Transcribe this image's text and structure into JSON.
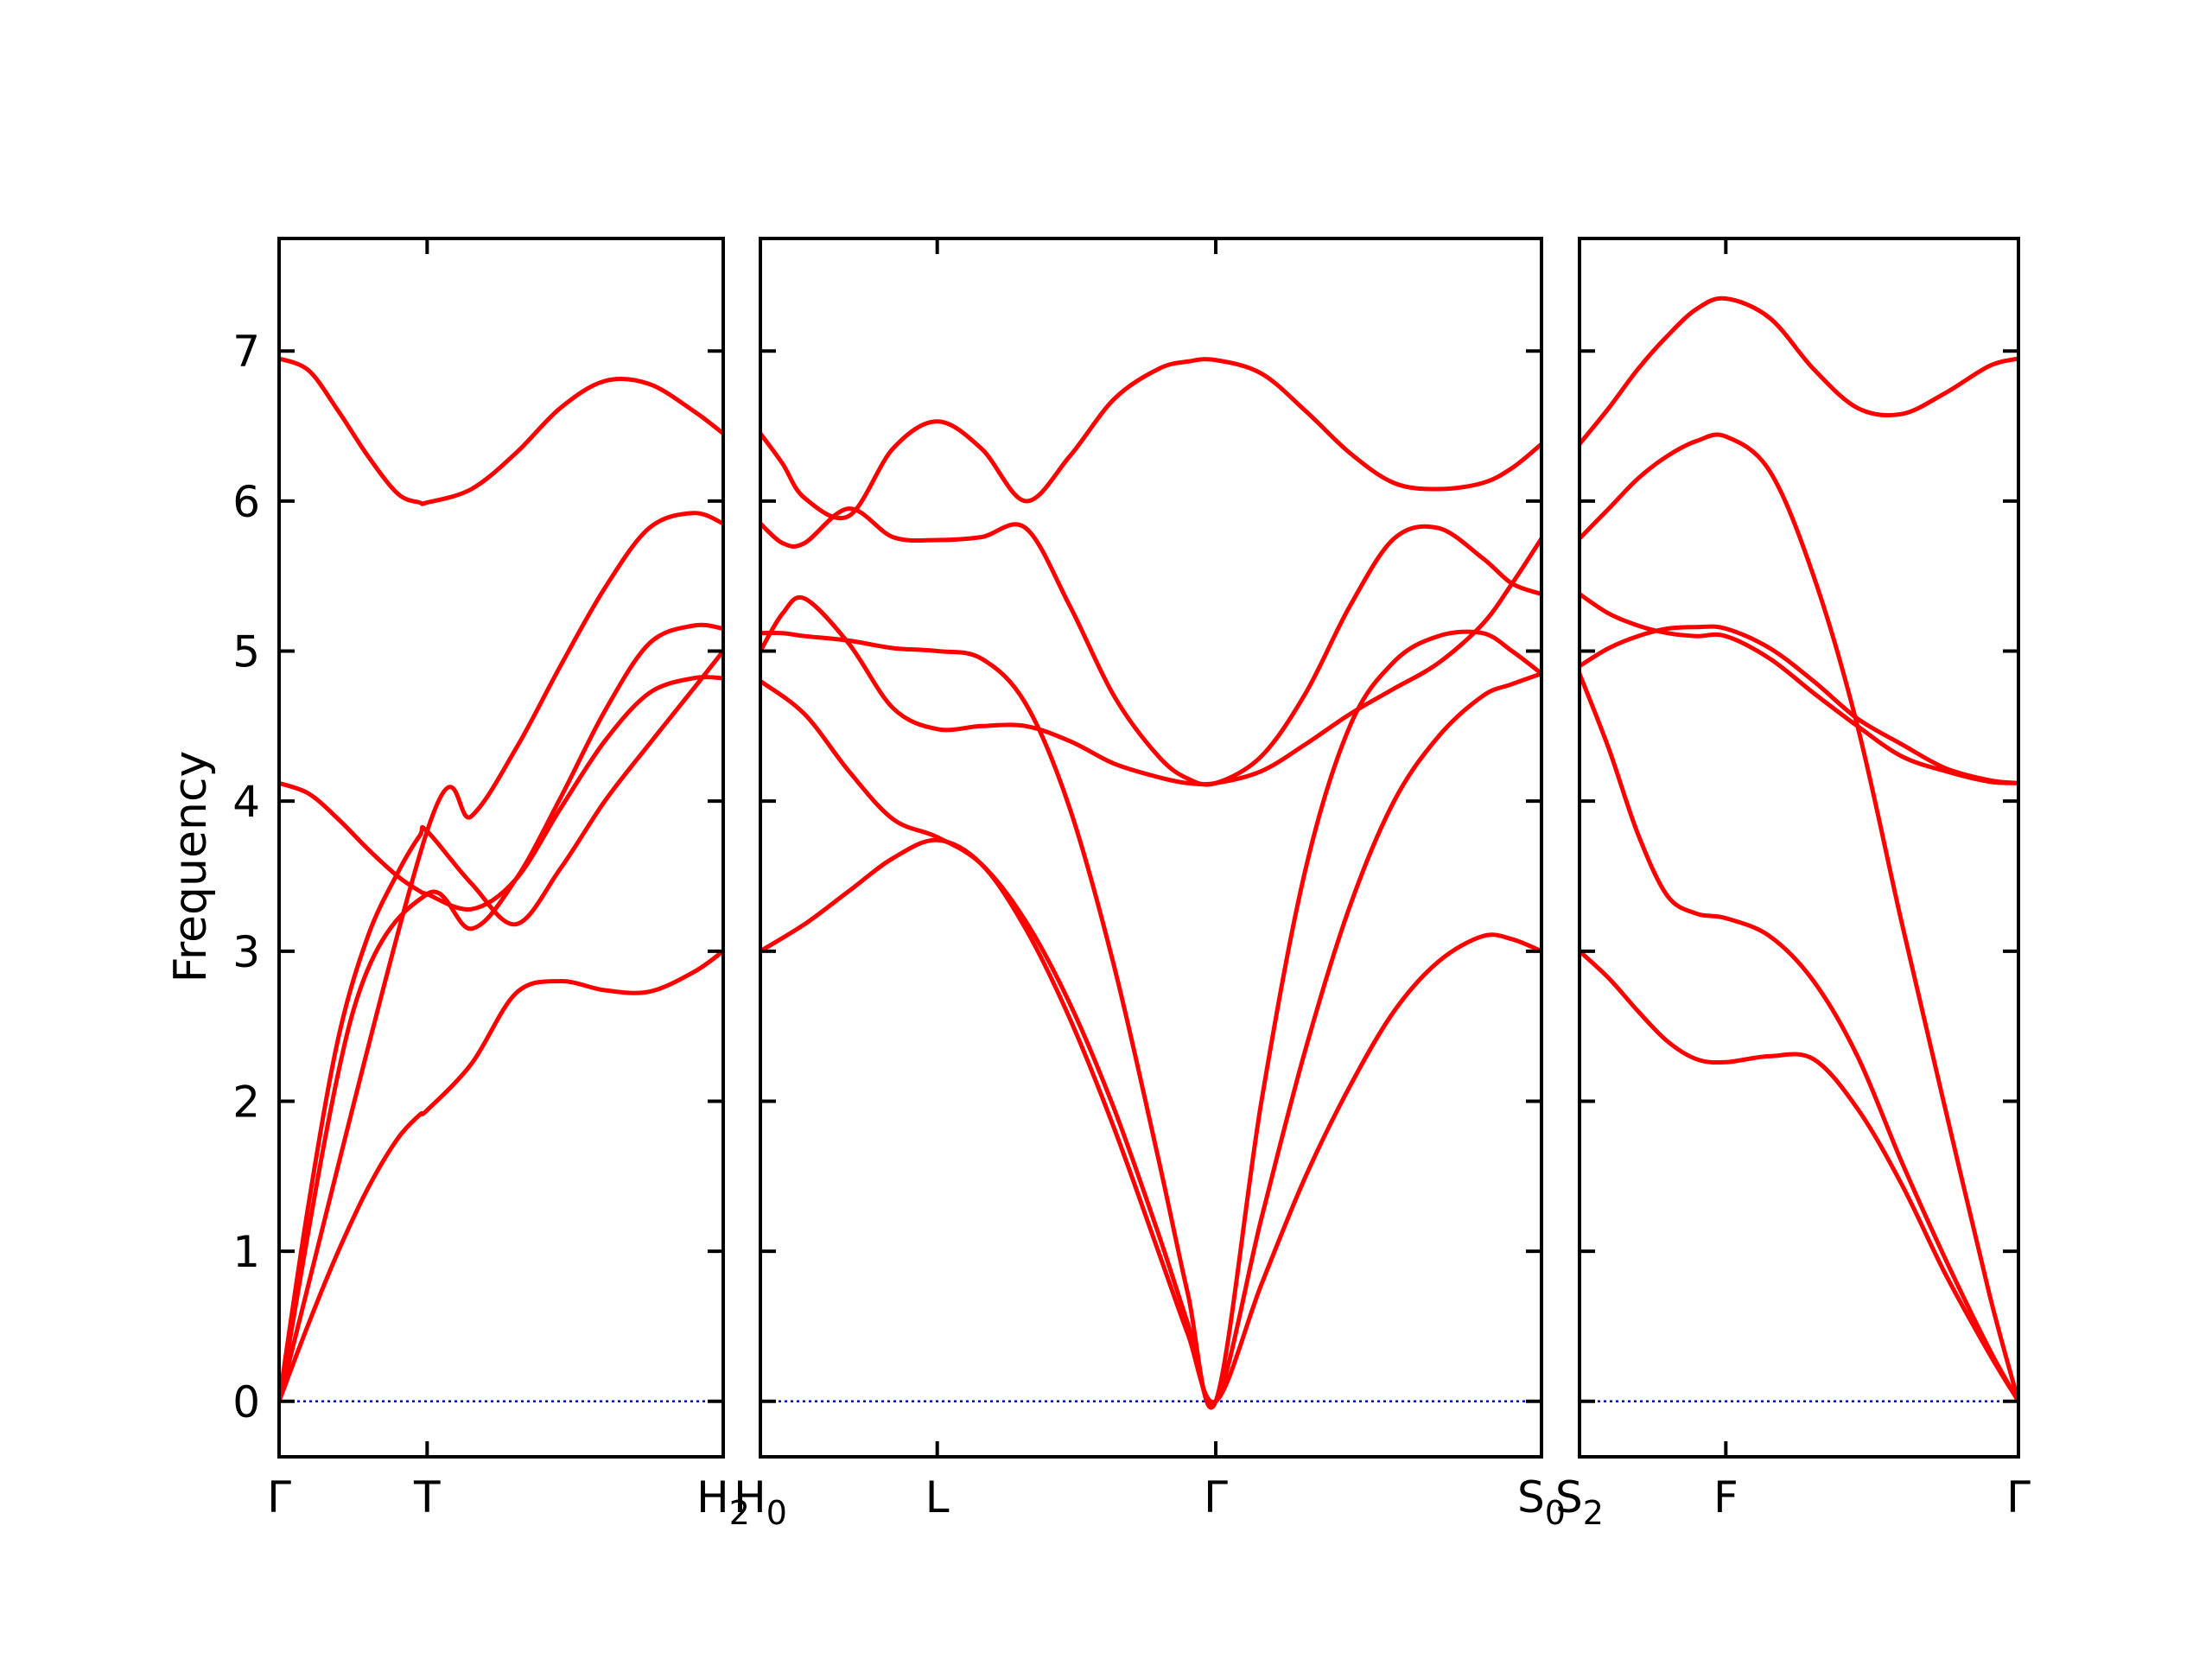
{
  "chart_data": {
    "type": "line",
    "ylabel": "Frequency",
    "ylim": [
      -0.37,
      7.75
    ],
    "yticks": [
      0,
      1,
      2,
      3,
      4,
      5,
      6,
      7
    ],
    "colors": {
      "bands": "#ff0000",
      "zero_line": "#0000cc",
      "frame": "#000000"
    },
    "grid": false,
    "panels": [
      {
        "xlim": [
          0,
          3.0
        ],
        "x_ticks": [
          {
            "x": 0,
            "label": "Γ",
            "sub": ""
          },
          {
            "x": 1.0,
            "label": "T",
            "sub": ""
          },
          {
            "x": 3.0,
            "label": "H",
            "sub": "2"
          }
        ],
        "series": [
          {
            "x": [
              0,
              0.2,
              0.4,
              0.6,
              0.8,
              0.95,
              1.0,
              1.3,
              1.6,
              1.9,
              2.2,
              2.5,
              2.8,
              3.0
            ],
            "y": [
              0,
              0.52,
              1.0,
              1.42,
              1.75,
              1.91,
              1.94,
              2.25,
              2.72,
              2.8,
              2.74,
              2.73,
              2.86,
              3.0
            ]
          },
          {
            "x": [
              0,
              0.2,
              0.4,
              0.6,
              0.8,
              0.95,
              1.0,
              1.3,
              1.6,
              1.9,
              2.2,
              2.5,
              2.8,
              3.0
            ],
            "y": [
              0,
              1.32,
              2.42,
              3.1,
              3.52,
              3.77,
              3.8,
              3.45,
              3.18,
              3.55,
              4.0,
              4.38,
              4.75,
              5.0
            ]
          },
          {
            "x": [
              0,
              0.2,
              0.4,
              0.6,
              0.8,
              0.95,
              1.0,
              1.3,
              1.6,
              1.9,
              2.2,
              2.5,
              2.8,
              3.0
            ],
            "y": [
              4.12,
              4.05,
              3.88,
              3.68,
              3.5,
              3.4,
              3.38,
              3.28,
              3.48,
              3.95,
              4.4,
              4.72,
              4.82,
              4.82
            ]
          },
          {
            "x": [
              0,
              0.5,
              1.0,
              1.3,
              1.6,
              1.9,
              2.2,
              2.5,
              2.8,
              3.0
            ],
            "y": [
              0,
              2.6,
              3.38,
              3.15,
              3.48,
              4.02,
              4.6,
              5.05,
              5.17,
              5.15
            ]
          },
          {
            "x": [
              0,
              1.0,
              1.3,
              1.6,
              1.9,
              2.2,
              2.5,
              2.8,
              3.0
            ],
            "y": [
              0,
              3.8,
              3.9,
              4.35,
              4.9,
              5.42,
              5.82,
              5.92,
              5.85
            ]
          },
          {
            "x": [
              0,
              0.2,
              0.4,
              0.6,
              0.8,
              0.95,
              1.0,
              1.3,
              1.6,
              1.9,
              2.2,
              2.5,
              2.8,
              3.0
            ],
            "y": [
              6.95,
              6.87,
              6.6,
              6.3,
              6.05,
              5.99,
              5.99,
              6.08,
              6.32,
              6.62,
              6.8,
              6.78,
              6.6,
              6.45
            ]
          }
        ]
      },
      {
        "xlim": [
          0,
          5.3
        ],
        "x_ticks": [
          {
            "x": 0,
            "label": "H",
            "sub": "0"
          },
          {
            "x": 1.2,
            "label": "L",
            "sub": ""
          },
          {
            "x": 3.09,
            "label": "Γ",
            "sub": ""
          },
          {
            "x": 5.3,
            "label": "S",
            "sub": "0"
          }
        ],
        "series": [
          {
            "x": [
              0,
              0.3,
              0.6,
              0.9,
              1.2,
              1.5,
              1.8,
              2.1,
              2.4,
              2.7,
              2.9,
              3.09,
              3.4,
              3.7,
              4.0,
              4.3,
              4.6,
              4.9,
              5.1,
              5.3
            ],
            "y": [
              3.0,
              3.18,
              3.4,
              3.62,
              3.74,
              3.58,
              3.15,
              2.55,
              1.82,
              1.0,
              0.45,
              0,
              0.78,
              1.5,
              2.1,
              2.6,
              2.93,
              3.1,
              3.08,
              3.0
            ]
          },
          {
            "x": [
              0,
              0.3,
              0.6,
              0.9,
              1.2,
              1.5,
              1.8,
              2.1,
              2.4,
              2.7,
              2.9,
              3.09,
              3.4,
              3.7,
              4.0,
              4.3,
              4.6,
              4.9,
              5.1,
              5.3
            ],
            "y": [
              4.8,
              4.58,
              4.2,
              3.88,
              3.76,
              3.58,
              3.2,
              2.65,
              1.95,
              1.12,
              0.52,
              0,
              1.22,
              2.35,
              3.3,
              4.0,
              4.43,
              4.7,
              4.78,
              4.85
            ]
          },
          {
            "x": [
              0,
              0.15,
              0.3,
              0.6,
              0.9,
              1.2,
              1.5,
              1.8,
              2.1,
              2.4,
              2.7,
              2.9,
              3.09,
              3.4,
              3.7,
              4.0,
              4.3,
              4.6,
              4.9,
              5.1,
              5.3
            ],
            "y": [
              5.12,
              5.12,
              5.1,
              5.07,
              5.02,
              5.0,
              4.95,
              4.65,
              3.95,
              2.9,
              1.62,
              0.72,
              0,
              2.0,
              3.55,
              4.5,
              4.93,
              5.1,
              5.12,
              5.0,
              4.85
            ]
          },
          {
            "x": [
              0,
              0.15,
              0.3,
              0.6,
              0.9,
              1.2,
              1.5,
              1.8,
              2.1,
              2.4,
              2.7,
              2.9,
              3.09,
              3.4,
              3.7,
              4.0,
              4.3,
              4.6,
              4.9,
              5.1,
              5.3
            ],
            "y": [
              5.0,
              5.25,
              5.35,
              5.05,
              4.62,
              4.48,
              4.5,
              4.5,
              4.4,
              4.25,
              4.16,
              4.12,
              4.12,
              4.2,
              4.38,
              4.58,
              4.75,
              4.92,
              5.18,
              5.45,
              5.75
            ]
          },
          {
            "x": [
              0,
              0.15,
              0.3,
              0.6,
              0.9,
              1.2,
              1.5,
              1.8,
              2.1,
              2.4,
              2.7,
              2.9,
              3.09,
              3.4,
              3.7,
              4.0,
              4.3,
              4.6,
              4.9,
              5.1,
              5.3
            ],
            "y": [
              5.85,
              5.72,
              5.72,
              5.95,
              5.76,
              5.74,
              5.76,
              5.82,
              5.3,
              4.7,
              4.3,
              4.15,
              4.12,
              4.3,
              4.72,
              5.3,
              5.75,
              5.82,
              5.62,
              5.45,
              5.38
            ]
          },
          {
            "x": [
              0,
              0.15,
              0.3,
              0.6,
              0.9,
              1.2,
              1.5,
              1.8,
              2.1,
              2.4,
              2.7,
              2.9,
              3.09,
              3.4,
              3.7,
              4.0,
              4.3,
              4.6,
              4.9,
              5.1,
              5.3
            ],
            "y": [
              6.45,
              6.25,
              6.02,
              5.9,
              6.35,
              6.53,
              6.35,
              6.0,
              6.3,
              6.68,
              6.88,
              6.93,
              6.94,
              6.85,
              6.6,
              6.32,
              6.12,
              6.08,
              6.12,
              6.22,
              6.38
            ]
          }
        ]
      },
      {
        "xlim": [
          0,
          3.0
        ],
        "x_ticks": [
          {
            "x": 0,
            "label": "S",
            "sub": "2"
          },
          {
            "x": 1.0,
            "label": "F",
            "sub": ""
          },
          {
            "x": 3.0,
            "label": "Γ",
            "sub": ""
          }
        ],
        "series": [
          {
            "x": [
              0,
              0.2,
              0.4,
              0.6,
              0.8,
              1.0,
              1.3,
              1.6,
              1.9,
              2.2,
              2.5,
              2.8,
              3.0
            ],
            "y": [
              3.0,
              2.82,
              2.6,
              2.4,
              2.28,
              2.26,
              2.3,
              2.28,
              1.95,
              1.45,
              0.85,
              0.32,
              0
            ]
          },
          {
            "x": [
              0,
              0.2,
              0.4,
              0.6,
              0.8,
              1.0,
              1.3,
              1.6,
              1.9,
              2.2,
              2.5,
              2.8,
              3.0
            ],
            "y": [
              4.85,
              4.35,
              3.78,
              3.37,
              3.25,
              3.22,
              3.1,
              2.8,
              2.3,
              1.6,
              0.95,
              0.35,
              0
            ]
          },
          {
            "x": [
              0,
              0.2,
              0.4,
              0.6,
              0.8,
              1.0,
              1.3,
              1.6,
              1.9,
              2.2,
              2.5,
              2.8,
              3.0
            ],
            "y": [
              4.9,
              5.02,
              5.1,
              5.15,
              5.16,
              5.15,
              5.02,
              4.8,
              4.55,
              4.38,
              4.22,
              4.14,
              4.12
            ]
          },
          {
            "x": [
              0,
              0.2,
              0.4,
              0.6,
              0.8,
              1.0,
              1.3,
              1.6,
              1.9,
              2.2,
              2.5,
              2.8,
              3.0
            ],
            "y": [
              5.38,
              5.25,
              5.17,
              5.12,
              5.1,
              5.1,
              4.95,
              4.72,
              4.5,
              4.3,
              4.2,
              4.13,
              4.12
            ]
          },
          {
            "x": [
              0,
              0.2,
              0.4,
              0.6,
              0.8,
              1.0,
              1.3,
              1.6,
              1.9,
              2.2,
              2.5,
              2.8,
              3.0
            ],
            "y": [
              5.75,
              5.95,
              6.15,
              6.3,
              6.4,
              6.43,
              6.2,
              5.5,
              4.5,
              3.2,
              1.95,
              0.72,
              0
            ]
          },
          {
            "x": [
              0,
              0.2,
              0.4,
              0.6,
              0.8,
              1.0,
              1.3,
              1.6,
              1.9,
              2.2,
              2.5,
              2.8,
              3.0
            ],
            "y": [
              6.38,
              6.62,
              6.88,
              7.1,
              7.28,
              7.35,
              7.22,
              6.88,
              6.62,
              6.58,
              6.72,
              6.9,
              6.95
            ]
          }
        ]
      }
    ]
  }
}
